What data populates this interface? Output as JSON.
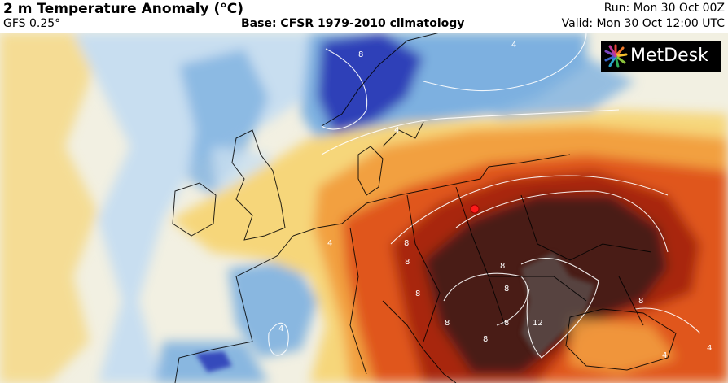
{
  "header": {
    "title": "2 m Temperature Anomaly (°C)",
    "model": "GFS 0.25°",
    "base": "Base: CFSR 1979-2010 climatology",
    "run": "Run: Mon 30 Oct 00Z",
    "valid": "Valid: Mon 30 Oct 12:00 UTC"
  },
  "logo": {
    "text": "MetDesk",
    "icon": "sunburst-logo-icon"
  },
  "map": {
    "variable": "2 m temperature anomaly",
    "units": "°C",
    "contour_labels": [
      "8",
      "4",
      "4",
      "4",
      "8",
      "8",
      "8",
      "8",
      "8",
      "8",
      "8",
      "8",
      "12",
      "8",
      "4",
      "4",
      "4"
    ],
    "colors": {
      "strong_cold": "#2f3fb8",
      "cold": "#7db0e0",
      "weak_cold": "#c8def0",
      "neutral": "#f2f0e2",
      "weak_warm": "#f6d67a",
      "warm": "#f2a040",
      "strong_warm": "#e0561c",
      "very_warm": "#a82810",
      "extreme_warm": "#4a1a14",
      "peak": "#5a4a48"
    }
  }
}
